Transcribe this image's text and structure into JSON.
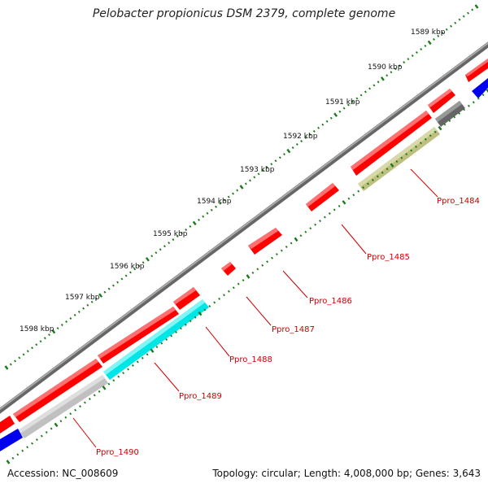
{
  "title": "Pelobacter propionicus DSM 2379, complete genome",
  "footer": {
    "accession": "Accession: NC_008609",
    "summary": "Topology: circular; Length: 4,008,000 bp; Genes: 3,643"
  },
  "ruler_labels": [
    "1589 kbp",
    "1590 kbp",
    "1591 kbp",
    "1592 kbp",
    "1593 kbp",
    "1594 kbp",
    "1595 kbp",
    "1596 kbp",
    "1597 kbp",
    "1598 kbp"
  ],
  "genes": [
    {
      "id": "Ppro_1484",
      "label": "Ppro_1484"
    },
    {
      "id": "Ppro_1485",
      "label": "Ppro_1485"
    },
    {
      "id": "Ppro_1486",
      "label": "Ppro_1486"
    },
    {
      "id": "Ppro_1487",
      "label": "Ppro_1487"
    },
    {
      "id": "Ppro_1488",
      "label": "Ppro_1488"
    },
    {
      "id": "Ppro_1489",
      "label": "Ppro_1489"
    },
    {
      "id": "Ppro_1490",
      "label": "Ppro_1490"
    }
  ],
  "colors": {
    "cds_forward": "#ff0000",
    "backbone": "#888888",
    "ruler_ticks": "#1a7a1a",
    "label_text": "#cc0000",
    "ppro_1484_bar": "#bfbf7f",
    "ppro_1489_bar": "#00e5e5",
    "ppro_1490_bar": "#c0c0c0",
    "dark_bar": "#666666",
    "blue_bar": "#0000ee"
  }
}
